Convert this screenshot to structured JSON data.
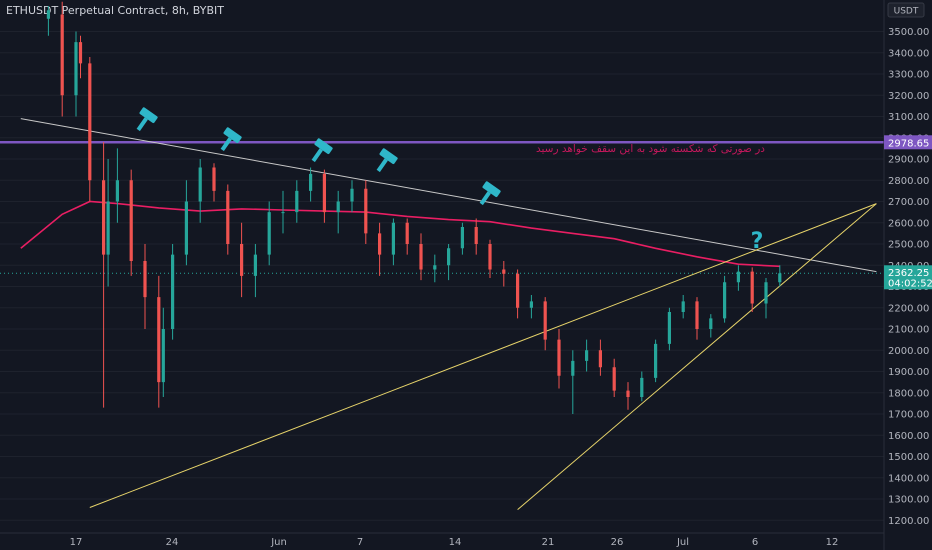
{
  "header": {
    "title": "ETHUSDT Perpetual Contract, 8h, BYBIT"
  },
  "currency_badge": "USDT",
  "colors": {
    "background": "#131722",
    "up": "#26a69a",
    "down": "#ef5350",
    "ma": "#e91e63",
    "horizontal_line": "#7e57c2",
    "trend_line": "#c8c8c8",
    "wedge": "#e6d36a",
    "annotation": "#2fb7c9",
    "axis_text": "#b2b5be"
  },
  "annotation_text": "در صورتی که شکسته شود به این سقف خواهد رسید",
  "question_mark": "?",
  "markers": {
    "hline_label": "2978.65",
    "last_price": "2362.25",
    "countdown": "04:02:52"
  },
  "chart_data": {
    "type": "candlestick",
    "title": "ETHUSDT Perpetual Contract, 8h, BYBIT",
    "ylim": [
      1150,
      3650
    ],
    "y_ticks": [
      3500,
      3400,
      3300,
      3200,
      3100,
      3000,
      2900,
      2800,
      2700,
      2600,
      2500,
      2400,
      2300,
      2200,
      2100,
      2000,
      1900,
      1800,
      1700,
      1600,
      1500,
      1400,
      1300,
      1200
    ],
    "x_ticks": [
      "17",
      "24",
      "Jun",
      "7",
      "14",
      "21",
      "26",
      "Jul",
      "6",
      "12"
    ],
    "horizontal_line": 2978.65,
    "last_price": 2362.25,
    "trend_line": {
      "from": [
        "May 13",
        3090
      ],
      "to": [
        "Jul 14",
        2370
      ]
    },
    "wedge_upper": {
      "from": [
        "May 18",
        1260
      ],
      "to": [
        "Jul 14",
        2690
      ]
    },
    "wedge_lower": {
      "from": [
        "Jun 18",
        1250
      ],
      "to": [
        "Jul 14",
        2690
      ]
    },
    "moving_average": [
      [
        "May 13",
        2480
      ],
      [
        "May 16",
        2640
      ],
      [
        "May 18",
        2700
      ],
      [
        "May 20",
        2690
      ],
      [
        "May 23",
        2670
      ],
      [
        "May 26",
        2655
      ],
      [
        "May 29",
        2665
      ],
      [
        "Jun 1",
        2660
      ],
      [
        "Jun 4",
        2655
      ],
      [
        "Jun 7",
        2650
      ],
      [
        "Jun 10",
        2630
      ],
      [
        "Jun 13",
        2615
      ],
      [
        "Jun 16",
        2605
      ],
      [
        "Jun 19",
        2575
      ],
      [
        "Jun 22",
        2550
      ],
      [
        "Jun 25",
        2525
      ],
      [
        "Jun 28",
        2480
      ],
      [
        "Jul 1",
        2440
      ],
      [
        "Jul 4",
        2405
      ],
      [
        "Jul 7",
        2395
      ]
    ],
    "candles": [
      [
        "May 15",
        3560,
        3620,
        3480,
        3600
      ],
      [
        "May 16",
        3580,
        3640,
        3100,
        3200
      ],
      [
        "May 17",
        3200,
        3500,
        3100,
        3450
      ],
      [
        "May 17",
        3450,
        3480,
        3280,
        3350
      ],
      [
        "May 18",
        3350,
        3380,
        2700,
        2800
      ],
      [
        "May 19",
        2800,
        2980,
        1730,
        2450
      ],
      [
        "May 19",
        2450,
        2900,
        2300,
        2700
      ],
      [
        "May 20",
        2700,
        2950,
        2600,
        2800
      ],
      [
        "May 21",
        2800,
        2850,
        2350,
        2420
      ],
      [
        "May 22",
        2420,
        2500,
        2100,
        2250
      ],
      [
        "May 23",
        2250,
        2350,
        1730,
        1850
      ],
      [
        "May 23",
        1850,
        2200,
        1780,
        2100
      ],
      [
        "May 24",
        2100,
        2500,
        2050,
        2450
      ],
      [
        "May 25",
        2450,
        2800,
        2400,
        2700
      ],
      [
        "May 26",
        2700,
        2900,
        2600,
        2860
      ],
      [
        "May 27",
        2860,
        2880,
        2700,
        2750
      ],
      [
        "May 28",
        2750,
        2780,
        2450,
        2500
      ],
      [
        "May 29",
        2500,
        2600,
        2250,
        2350
      ],
      [
        "May 30",
        2350,
        2500,
        2250,
        2450
      ],
      [
        "May 31",
        2450,
        2700,
        2400,
        2650
      ],
      [
        "Jun 1",
        2650,
        2750,
        2550,
        2650
      ],
      [
        "Jun 2",
        2650,
        2800,
        2600,
        2750
      ],
      [
        "Jun 3",
        2750,
        2860,
        2700,
        2830
      ],
      [
        "Jun 4",
        2830,
        2850,
        2600,
        2650
      ],
      [
        "Jun 5",
        2650,
        2750,
        2550,
        2700
      ],
      [
        "Jun 6",
        2700,
        2800,
        2650,
        2760
      ],
      [
        "Jun 7",
        2760,
        2800,
        2500,
        2550
      ],
      [
        "Jun 8",
        2550,
        2600,
        2350,
        2450
      ],
      [
        "Jun 9",
        2450,
        2620,
        2400,
        2600
      ],
      [
        "Jun 10",
        2600,
        2620,
        2450,
        2500
      ],
      [
        "Jun 11",
        2500,
        2550,
        2330,
        2380
      ],
      [
        "Jun 12",
        2380,
        2450,
        2320,
        2400
      ],
      [
        "Jun 13",
        2400,
        2500,
        2330,
        2480
      ],
      [
        "Jun 14",
        2480,
        2600,
        2450,
        2580
      ],
      [
        "Jun 15",
        2580,
        2620,
        2450,
        2500
      ],
      [
        "Jun 16",
        2500,
        2520,
        2340,
        2380
      ],
      [
        "Jun 17",
        2380,
        2420,
        2300,
        2360
      ],
      [
        "Jun 18",
        2360,
        2380,
        2150,
        2200
      ],
      [
        "Jun 19",
        2200,
        2260,
        2150,
        2230
      ],
      [
        "Jun 20",
        2230,
        2250,
        2000,
        2050
      ],
      [
        "Jun 21",
        2050,
        2100,
        1820,
        1880
      ],
      [
        "Jun 22",
        1880,
        2000,
        1700,
        1950
      ],
      [
        "Jun 23",
        1950,
        2050,
        1900,
        2000
      ],
      [
        "Jun 24",
        2000,
        2050,
        1880,
        1920
      ],
      [
        "Jun 25",
        1920,
        1960,
        1780,
        1810
      ],
      [
        "Jun 26",
        1810,
        1850,
        1720,
        1780
      ],
      [
        "Jun 27",
        1780,
        1900,
        1760,
        1870
      ],
      [
        "Jun 28",
        1870,
        2050,
        1850,
        2030
      ],
      [
        "Jun 29",
        2030,
        2200,
        2000,
        2180
      ],
      [
        "Jun 30",
        2180,
        2260,
        2150,
        2230
      ],
      [
        "Jul 1",
        2230,
        2250,
        2050,
        2100
      ],
      [
        "Jul 2",
        2100,
        2170,
        2060,
        2150
      ],
      [
        "Jul 3",
        2150,
        2350,
        2130,
        2320
      ],
      [
        "Jul 4",
        2320,
        2400,
        2280,
        2370
      ],
      [
        "Jul 5",
        2370,
        2390,
        2180,
        2220
      ],
      [
        "Jul 6",
        2220,
        2340,
        2150,
        2320
      ],
      [
        "Jul 7",
        2320,
        2400,
        2300,
        2362
      ]
    ]
  }
}
